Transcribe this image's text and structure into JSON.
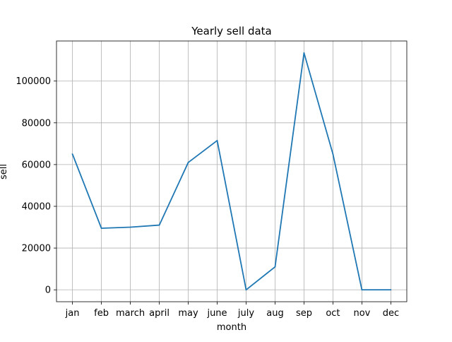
{
  "colors": {
    "series": "#1f77b4",
    "background": "#ffffff"
  },
  "chart_data": {
    "type": "line",
    "title": "Yearly sell data",
    "xlabel": "month",
    "ylabel": "sell",
    "categories": [
      "jan",
      "feb",
      "march",
      "april",
      "may",
      "june",
      "july",
      "aug",
      "sep",
      "oct",
      "nov",
      "dec"
    ],
    "series": [
      {
        "values": [
          65000,
          29500,
          30000,
          31000,
          61000,
          71500,
          0,
          11000,
          113500,
          65000,
          0,
          0
        ]
      }
    ],
    "yticks": [
      0,
      20000,
      40000,
      60000,
      80000,
      100000
    ],
    "ylim": [
      -5700,
      119200
    ],
    "grid": true,
    "legend": "none"
  }
}
